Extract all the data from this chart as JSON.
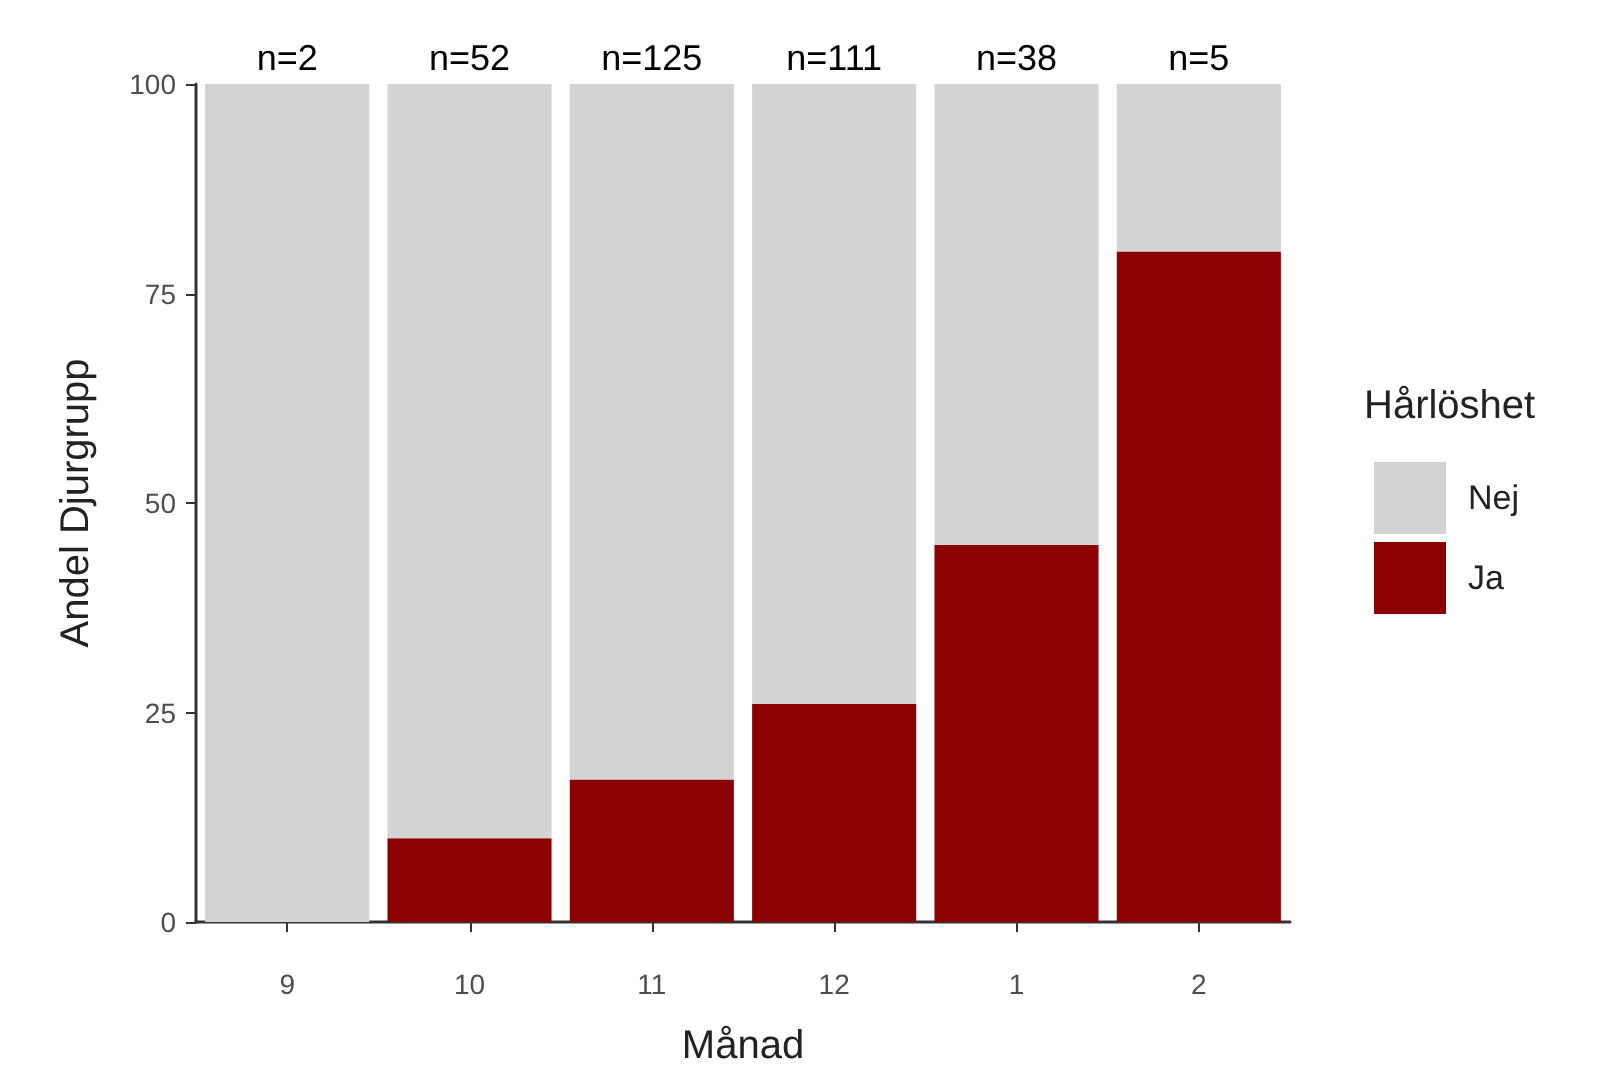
{
  "chart_data": {
    "type": "bar",
    "stacked": true,
    "xlabel": "Månad",
    "ylabel": "Andel Djurgrupp",
    "legend_title": "Hårlöshet",
    "legend": "right",
    "grid": false,
    "categories": [
      "9",
      "10",
      "11",
      "12",
      "1",
      "2"
    ],
    "series": [
      {
        "name": "Ja",
        "color": "#8b0000",
        "values": [
          0,
          10,
          17,
          26,
          45,
          80
        ]
      },
      {
        "name": "Nej",
        "color": "#d3d3d3",
        "values": [
          100,
          90,
          83,
          74,
          55,
          20
        ]
      }
    ],
    "ylim": [
      0,
      100
    ],
    "yticks": [
      0,
      25,
      50,
      75,
      100
    ],
    "annotations": [
      {
        "text": "n=2",
        "x": "9",
        "y": 100
      },
      {
        "text": "n=52",
        "x": "10",
        "y": 100
      },
      {
        "text": "n=125",
        "x": "11",
        "y": 100
      },
      {
        "text": "n=111",
        "x": "12",
        "y": 100
      },
      {
        "text": "n=38",
        "x": "1",
        "y": 100
      },
      {
        "text": "n=5",
        "x": "2",
        "y": 100
      }
    ]
  }
}
